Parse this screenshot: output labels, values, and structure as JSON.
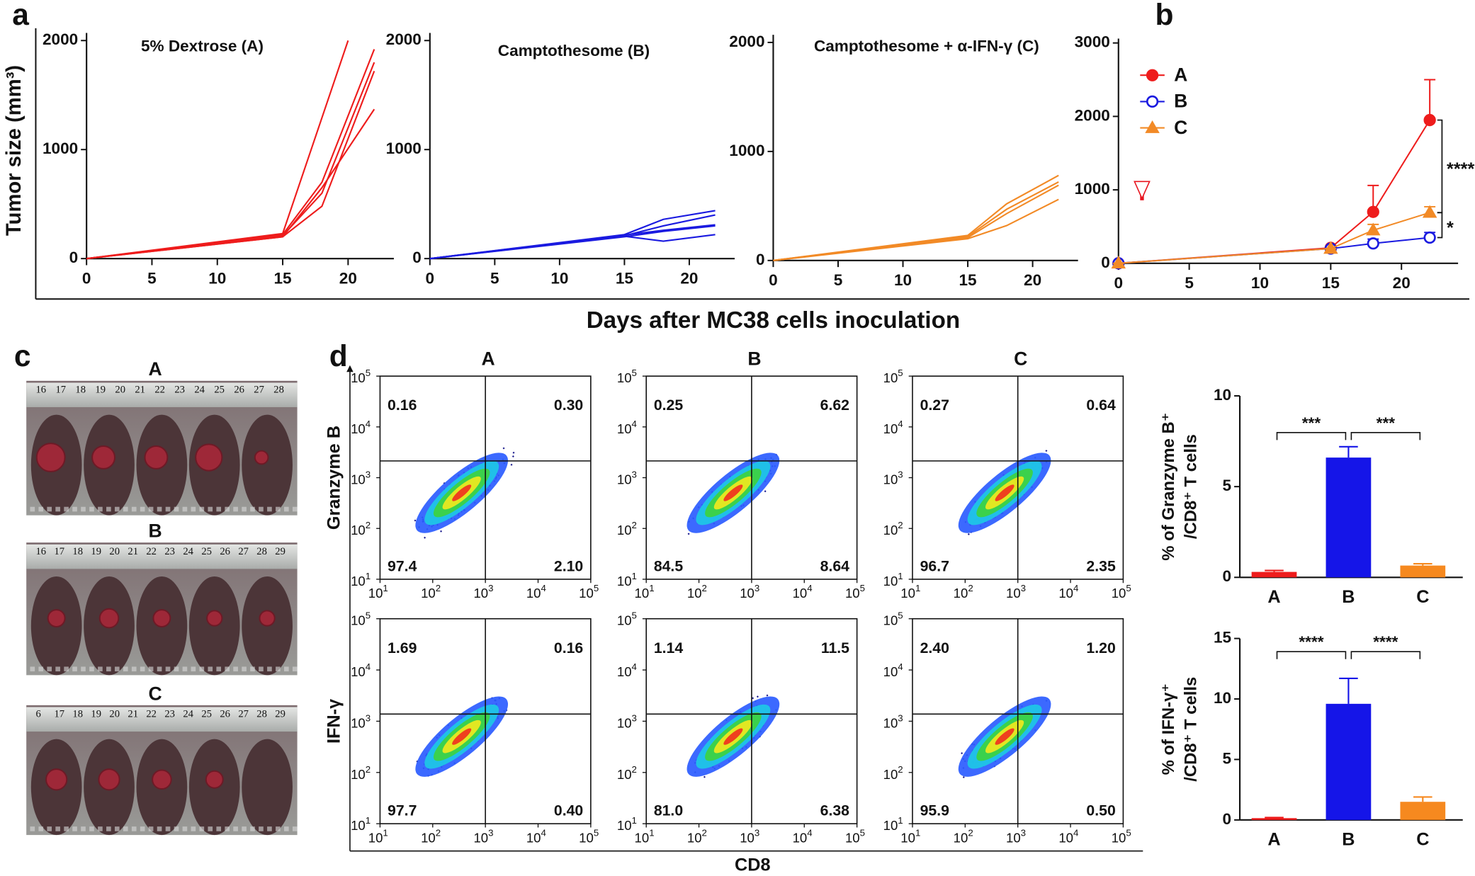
{
  "panel_labels": [
    "a",
    "b",
    "c",
    "d"
  ],
  "shared": {
    "xlabel": "Days after MC38 cells inoculation",
    "ylabel": "Tumor size (mm³)"
  },
  "chart_data": [
    {
      "type": "line",
      "title": "5% Dextrose (A)",
      "color": "#ee1c1c",
      "xlim": [
        0,
        23.5
      ],
      "xticks": [
        0,
        5,
        10,
        15,
        20
      ],
      "ylim": [
        0,
        2070
      ],
      "yticks": [
        0,
        1000,
        2000
      ],
      "series": [
        {
          "x": [
            0,
            15,
            20
          ],
          "values": [
            0,
            230,
            2000
          ]
        },
        {
          "x": [
            0,
            15,
            18,
            22
          ],
          "values": [
            0,
            220,
            700,
            1920
          ]
        },
        {
          "x": [
            0,
            15,
            18,
            22
          ],
          "values": [
            0,
            210,
            600,
            1800
          ]
        },
        {
          "x": [
            0,
            15,
            18,
            22
          ],
          "values": [
            0,
            200,
            480,
            1720
          ]
        },
        {
          "x": [
            0,
            15,
            18,
            22
          ],
          "values": [
            0,
            200,
            650,
            1370
          ]
        }
      ]
    },
    {
      "type": "line",
      "title": "Camptothesome (B)",
      "color": "#1a1ae0",
      "xlim": [
        0,
        23.5
      ],
      "xticks": [
        0,
        5,
        10,
        15,
        20
      ],
      "ylim": [
        0,
        2070
      ],
      "yticks": [
        0,
        1000,
        2000
      ],
      "series": [
        {
          "x": [
            0,
            15,
            18,
            22
          ],
          "values": [
            0,
            220,
            360,
            440
          ]
        },
        {
          "x": [
            0,
            15,
            18,
            22
          ],
          "values": [
            0,
            210,
            300,
            400
          ]
        },
        {
          "x": [
            0,
            15,
            18,
            22
          ],
          "values": [
            0,
            215,
            260,
            310
          ]
        },
        {
          "x": [
            0,
            15,
            18,
            22
          ],
          "values": [
            0,
            200,
            250,
            300
          ]
        },
        {
          "x": [
            0,
            15,
            18,
            22
          ],
          "values": [
            0,
            205,
            160,
            220
          ]
        }
      ]
    },
    {
      "type": "line",
      "title": "Camptothesome + α-IFN-γ (C)",
      "color": "#f28a26",
      "xlim": [
        0,
        23.5
      ],
      "xticks": [
        0,
        5,
        10,
        15,
        20
      ],
      "ylim": [
        0,
        2070
      ],
      "yticks": [
        0,
        1000,
        2000
      ],
      "series": [
        {
          "x": [
            0,
            15,
            18,
            22
          ],
          "values": [
            0,
            230,
            520,
            780
          ]
        },
        {
          "x": [
            0,
            15,
            18,
            22
          ],
          "values": [
            0,
            220,
            470,
            720
          ]
        },
        {
          "x": [
            0,
            15,
            18,
            22
          ],
          "values": [
            0,
            210,
            430,
            690
          ]
        },
        {
          "x": [
            0,
            15,
            18,
            22
          ],
          "values": [
            0,
            200,
            320,
            560
          ]
        }
      ]
    },
    {
      "type": "line",
      "legend": "upper left",
      "xlim": [
        0,
        24
      ],
      "xticks": [
        0,
        5,
        10,
        15,
        20
      ],
      "ylim": [
        0,
        3060
      ],
      "yticks": [
        0,
        1000,
        2000,
        3000
      ],
      "x": [
        0,
        15,
        18,
        22
      ],
      "series": [
        {
          "name": "A",
          "color": "#ee1c1c",
          "marker": "circle",
          "values": [
            0,
            210,
            700,
            1950
          ],
          "errors": [
            0,
            0,
            360,
            550
          ]
        },
        {
          "name": "B",
          "color": "#1a1ae0",
          "marker": "open-circle",
          "values": [
            0,
            200,
            270,
            350
          ],
          "errors": [
            0,
            0,
            60,
            70
          ]
        },
        {
          "name": "C",
          "color": "#f28a26",
          "marker": "triangle",
          "values": [
            0,
            200,
            450,
            690
          ],
          "errors": [
            0,
            0,
            80,
            80
          ]
        }
      ],
      "annotations": [
        "****",
        "*"
      ]
    },
    {
      "type": "bar",
      "ylabel": [
        "% of Granzyme B⁺",
        "/CD8⁺ T cells"
      ],
      "categories": [
        "A",
        "B",
        "C"
      ],
      "values": [
        0.3,
        6.6,
        0.65
      ],
      "errors": [
        0.08,
        0.6,
        0.1
      ],
      "colors": [
        "#ee1c1c",
        "#1515e8",
        "#f6891f"
      ],
      "ylim": [
        0,
        10
      ],
      "yticks": [
        0,
        5,
        10
      ],
      "annotations": [
        "***",
        "***"
      ]
    },
    {
      "type": "bar",
      "ylabel": [
        "% of IFN-γ⁺",
        "/CD8⁺ T cells"
      ],
      "categories": [
        "A",
        "B",
        "C"
      ],
      "values": [
        0.15,
        9.6,
        1.5
      ],
      "errors": [
        0.05,
        2.1,
        0.4
      ],
      "colors": [
        "#ee1c1c",
        "#1515e8",
        "#f6891f"
      ],
      "ylim": [
        0,
        15
      ],
      "yticks": [
        0,
        5,
        10,
        15
      ],
      "annotations": [
        "****",
        "****"
      ]
    }
  ],
  "photos": [
    {
      "label": "A",
      "ruler": [
        "16",
        "17",
        "18",
        "19",
        "20",
        "21",
        "22",
        "23",
        "24",
        "25",
        "26",
        "27",
        "28"
      ]
    },
    {
      "label": "B",
      "ruler": [
        "16",
        "17",
        "18",
        "19",
        "20",
        "21",
        "22",
        "23",
        "24",
        "25",
        "26",
        "27",
        "28",
        "29"
      ]
    },
    {
      "label": "C",
      "ruler": [
        "6",
        "17",
        "18",
        "19",
        "20",
        "21",
        "22",
        "23",
        "24",
        "25",
        "26",
        "27",
        "28",
        "29"
      ]
    }
  ],
  "flow": {
    "columns": [
      "A",
      "B",
      "C"
    ],
    "xlabel": "CD8",
    "tick_base": "10",
    "ticks": [
      1,
      2,
      3,
      4,
      5
    ],
    "rows": [
      {
        "ylabel": "Granzyme B",
        "quadrants": [
          [
            "0.16",
            "0.30",
            "97.4",
            "2.10"
          ],
          [
            "0.25",
            "6.62",
            "84.5",
            "8.64"
          ],
          [
            "0.27",
            "0.64",
            "96.7",
            "2.35"
          ]
        ]
      },
      {
        "ylabel": "IFN-γ",
        "quadrants": [
          [
            "1.69",
            "0.16",
            "97.7",
            "0.40"
          ],
          [
            "1.14",
            "11.5",
            "81.0",
            "6.38"
          ],
          [
            "2.40",
            "1.20",
            "95.9",
            "0.50"
          ]
        ]
      }
    ]
  }
}
